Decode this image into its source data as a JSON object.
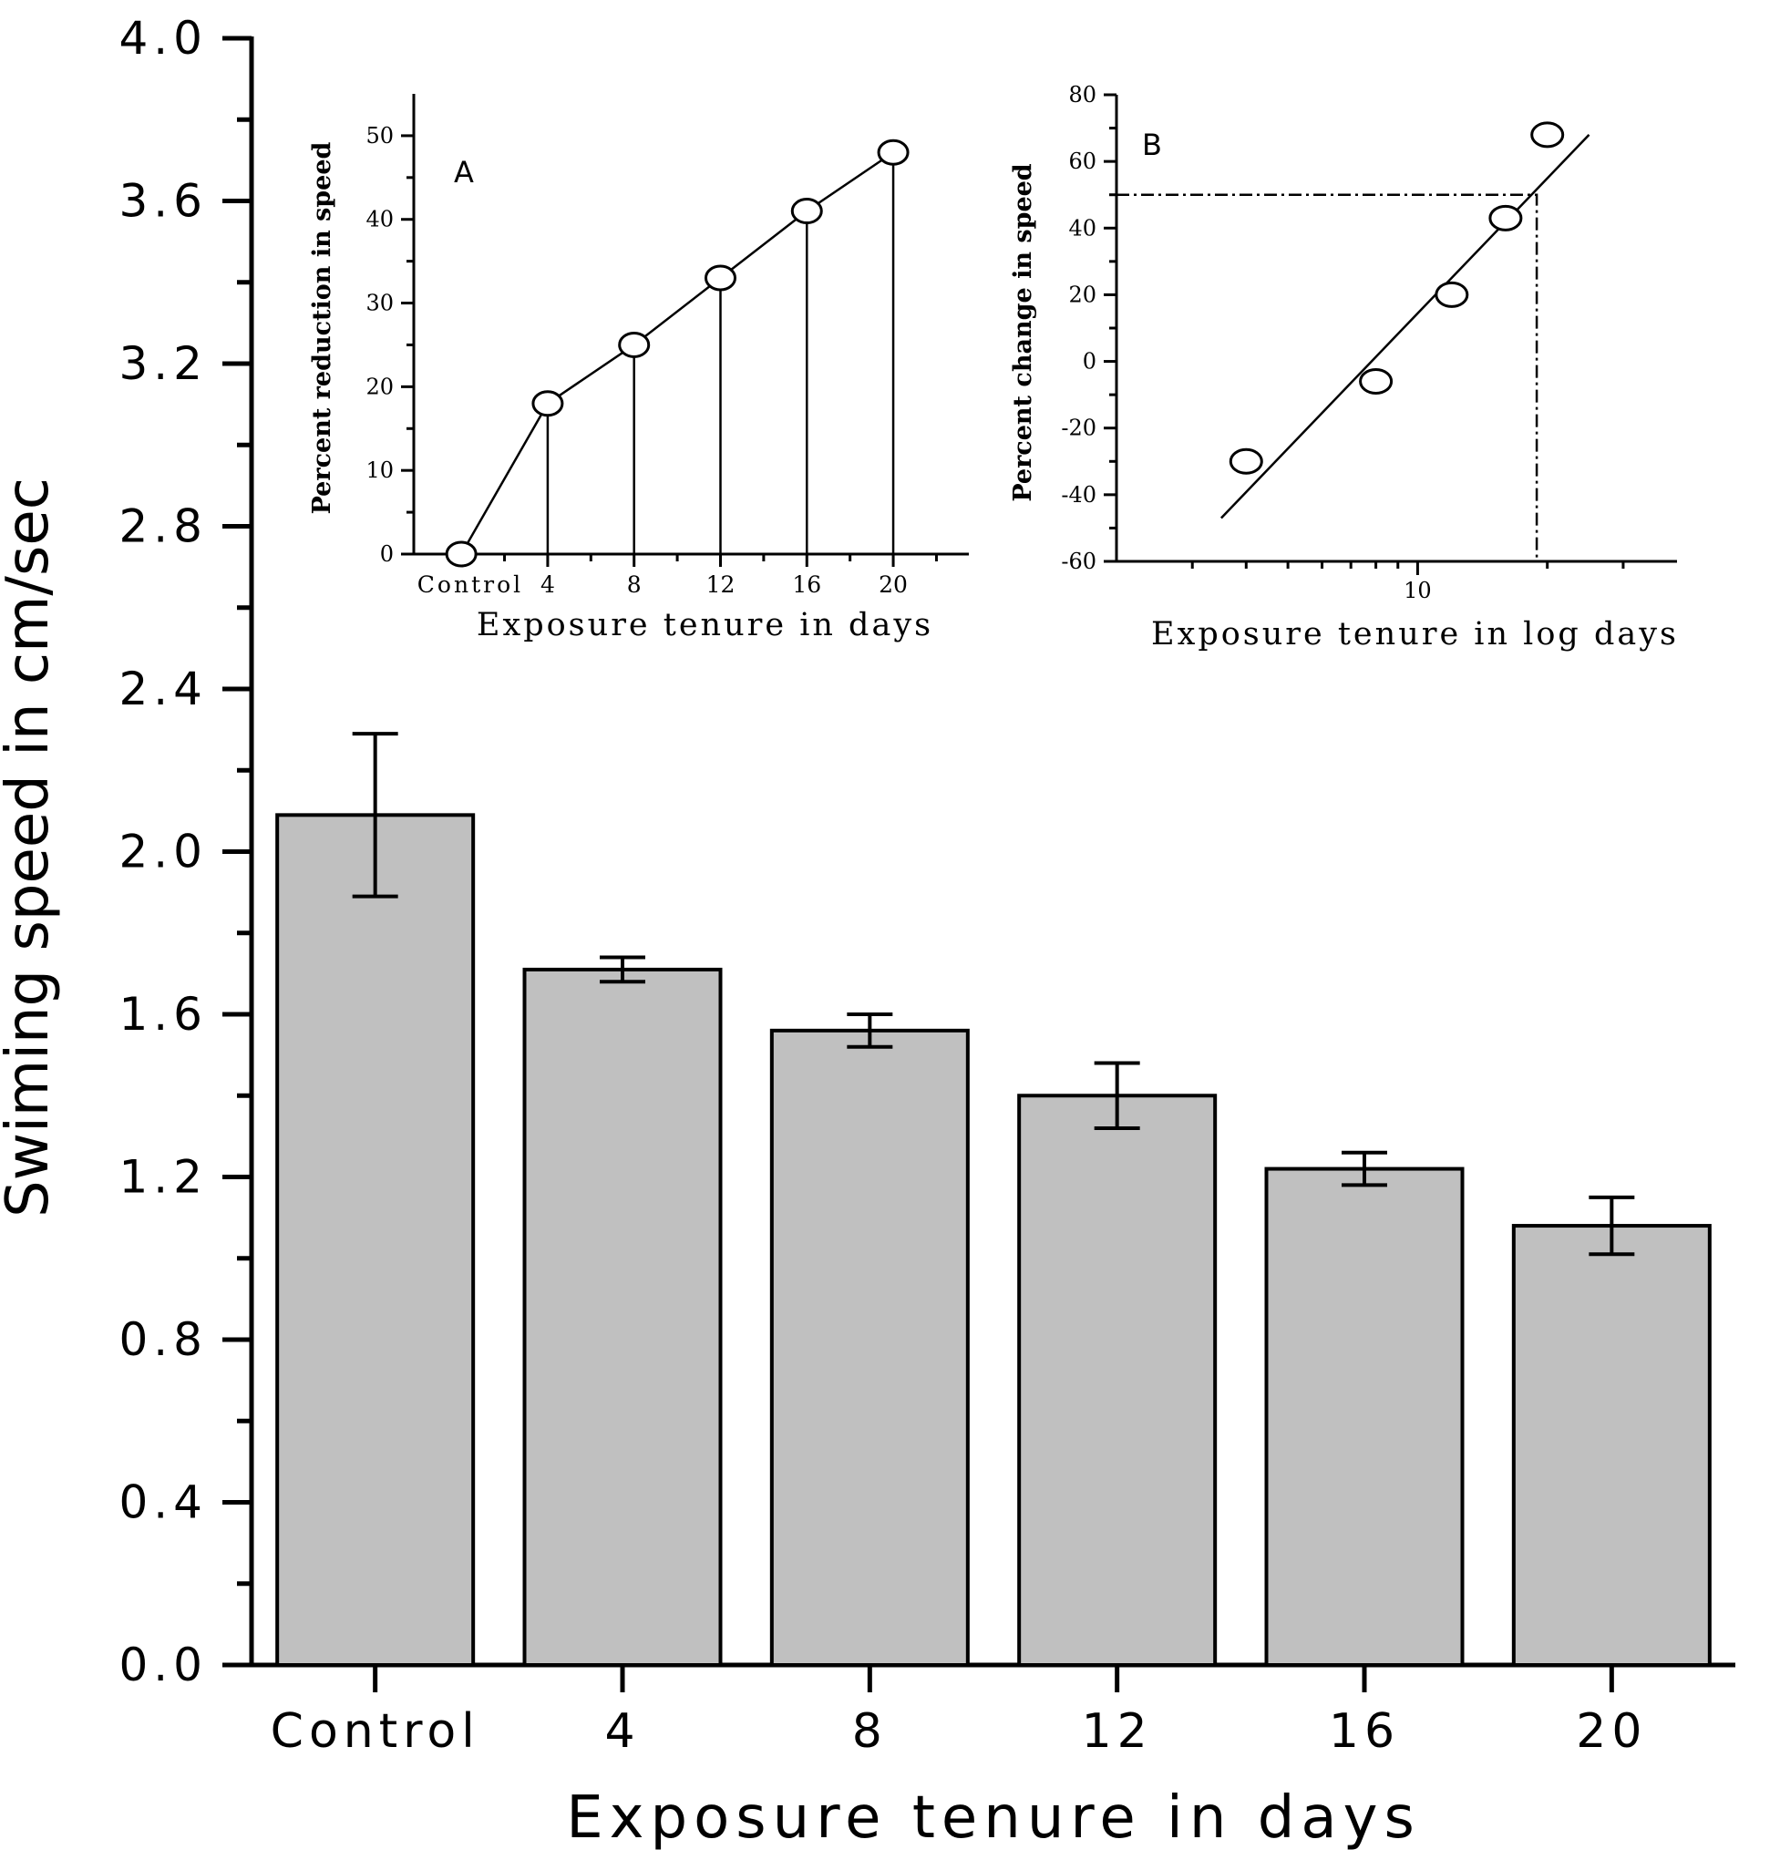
{
  "chart_data": [
    {
      "id": "main",
      "type": "bar",
      "title": "",
      "xlabel": "Exposure tenure in days",
      "ylabel": "Swiming speed in cm/sec",
      "categories": [
        "Control",
        "4",
        "8",
        "12",
        "16",
        "20"
      ],
      "values": [
        2.09,
        1.71,
        1.56,
        1.4,
        1.22,
        1.08
      ],
      "errors": [
        0.2,
        0.03,
        0.04,
        0.08,
        0.04,
        0.07
      ],
      "ylim": [
        0,
        4.0
      ],
      "yticks": [
        0.0,
        0.4,
        0.8,
        1.2,
        1.6,
        2.0,
        2.4,
        2.8,
        3.2,
        3.6,
        4.0
      ],
      "ytick_labels": [
        "0.0",
        "0.4",
        "0.8",
        "1.2",
        "1.6",
        "2.0",
        "2.4",
        "2.8",
        "3.2",
        "3.6",
        "4.0"
      ],
      "bar_color": "#c0c0c0",
      "grid": false
    },
    {
      "id": "inset_a",
      "type": "line",
      "panel_label": "A",
      "xlabel": "Exposure tenure in days",
      "ylabel": "Percent reduction in speed",
      "categories": [
        "Control",
        "4",
        "8",
        "12",
        "16",
        "20"
      ],
      "x": [
        0,
        4,
        8,
        12,
        16,
        20
      ],
      "values": [
        0,
        18,
        25,
        33,
        41,
        48
      ],
      "xlim": [
        -2.2,
        23.5
      ],
      "ylim": [
        0,
        55
      ],
      "yticks": [
        0,
        10,
        20,
        30,
        40,
        50
      ],
      "ytick_labels": [
        "0",
        "10",
        "20",
        "30",
        "40",
        "50"
      ],
      "drop_lines": true,
      "grid": false
    },
    {
      "id": "inset_b",
      "type": "scatter",
      "panel_label": "B",
      "xlabel": "Exposure tenure in log days",
      "ylabel": "Percent change in speed",
      "x_scale": "log",
      "x": [
        4,
        8,
        12,
        16,
        20
      ],
      "values": [
        -30,
        -6,
        20,
        43,
        68
      ],
      "fit_line": {
        "x": [
          3.5,
          25
        ],
        "y": [
          -47,
          68
        ]
      },
      "reference": {
        "x": 18.9,
        "y": 50
      },
      "xlim": [
        2.0,
        40
      ],
      "xticks": [
        10
      ],
      "xtick_labels": [
        "10"
      ],
      "ylim": [
        -60,
        80
      ],
      "yticks": [
        -60,
        -40,
        -20,
        0,
        20,
        40,
        60,
        80
      ],
      "ytick_labels": [
        "-60",
        "-40",
        "-20",
        "0",
        "20",
        "40",
        "60",
        "80"
      ],
      "grid": false
    }
  ]
}
